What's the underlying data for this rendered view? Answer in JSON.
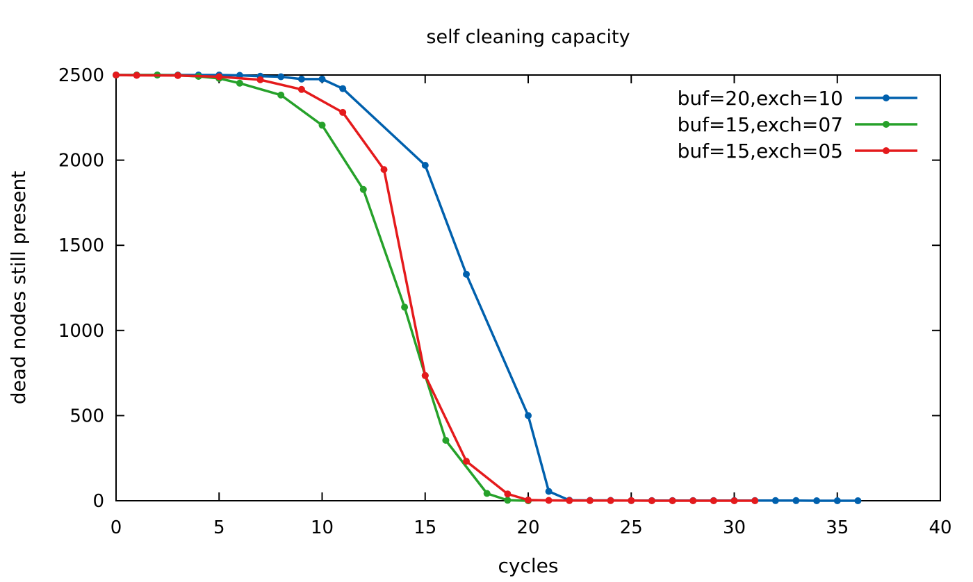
{
  "chart_data": {
    "type": "line",
    "title": "self cleaning capacity",
    "xlabel": "cycles",
    "ylabel": "dead nodes still present",
    "xlim": [
      0,
      40
    ],
    "ylim": [
      0,
      2500
    ],
    "xticks": [
      0,
      5,
      10,
      15,
      20,
      25,
      30,
      35,
      40
    ],
    "yticks": [
      0,
      500,
      1000,
      1500,
      2000,
      2500
    ],
    "grid": false,
    "legend_position": "top-right",
    "series": [
      {
        "name": "buf=20,exch=10",
        "color": "#0060ad",
        "x": [
          0,
          1,
          2,
          3,
          4,
          5,
          6,
          7,
          8,
          9,
          10,
          11,
          15,
          17,
          20,
          21,
          22,
          23,
          24,
          25,
          26,
          27,
          28,
          29,
          30,
          31,
          32,
          33,
          34,
          35,
          36
        ],
        "y": [
          2500,
          2500,
          2500,
          2500,
          2500,
          2500,
          2498,
          2493,
          2490,
          2476,
          2476,
          2420,
          1970,
          1330,
          500,
          55,
          3,
          2,
          2,
          1,
          1,
          1,
          1,
          1,
          1,
          1,
          1,
          1,
          0,
          0,
          0
        ]
      },
      {
        "name": "buf=15,exch=07",
        "color": "#26a12a",
        "x": [
          0,
          1,
          2,
          3,
          4,
          5,
          6,
          8,
          10,
          12,
          14,
          15,
          16,
          18,
          19,
          20
        ],
        "y": [
          2500,
          2500,
          2500,
          2498,
          2492,
          2480,
          2452,
          2382,
          2205,
          1828,
          1137,
          735,
          355,
          43,
          3,
          0
        ]
      },
      {
        "name": "buf=15,exch=05",
        "color": "#e41a1c",
        "x": [
          0,
          1,
          3,
          5,
          7,
          9,
          11,
          13,
          15,
          17,
          19,
          20,
          21,
          22,
          23,
          24,
          25,
          26,
          27,
          28,
          29,
          30,
          31
        ],
        "y": [
          2500,
          2498,
          2497,
          2490,
          2472,
          2415,
          2280,
          1945,
          735,
          232,
          40,
          4,
          2,
          1,
          1,
          1,
          1,
          0,
          0,
          0,
          0,
          0,
          0
        ]
      }
    ]
  }
}
